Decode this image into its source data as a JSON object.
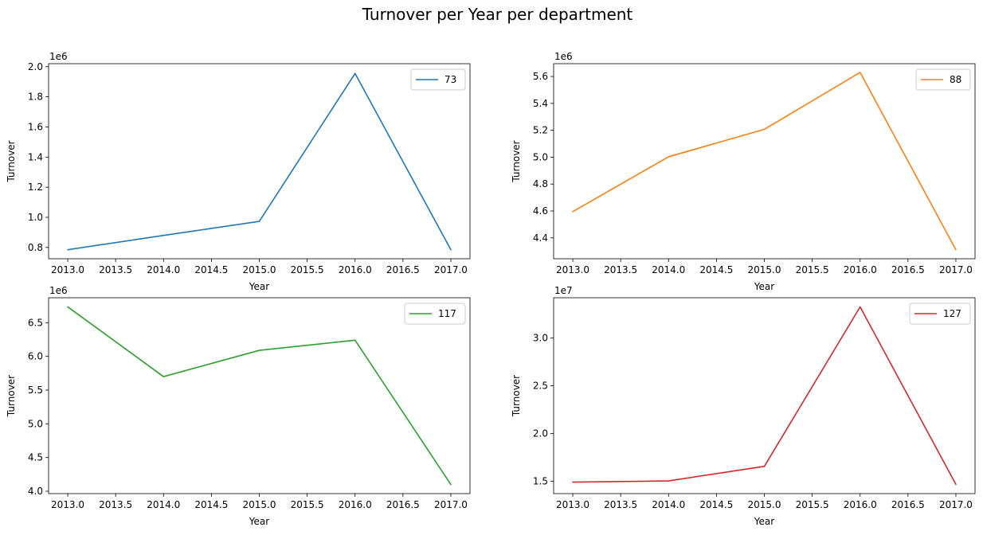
{
  "title": "Turnover per Year per department",
  "chart_data": [
    {
      "type": "line",
      "x": [
        2013.0,
        2014.0,
        2015.0,
        2016.0,
        2017.0
      ],
      "xticks": [
        "2013.0",
        "2013.5",
        "2014.0",
        "2014.5",
        "2015.0",
        "2015.5",
        "2016.0",
        "2016.5",
        "2017.0"
      ],
      "xlabel": "Year",
      "ylabel": "Turnover",
      "offset_text": "1e6",
      "yticks": [
        "0.8",
        "1.0",
        "1.2",
        "1.4",
        "1.6",
        "1.8",
        "2.0"
      ],
      "ylim": [
        725000.0,
        2020000.0
      ],
      "series": [
        {
          "name": "73",
          "color": "#1f77b4",
          "values": [
            785000,
            880000,
            973000,
            1955000,
            785000
          ]
        }
      ],
      "legend": "upper right"
    },
    {
      "type": "line",
      "x": [
        2013.0,
        2014.0,
        2015.0,
        2016.0,
        2017.0
      ],
      "xticks": [
        "2013.0",
        "2013.5",
        "2014.0",
        "2014.5",
        "2015.0",
        "2015.5",
        "2016.0",
        "2016.5",
        "2017.0"
      ],
      "xlabel": "Year",
      "ylabel": "Turnover",
      "offset_text": "1e6",
      "yticks": [
        "4.4",
        "4.6",
        "4.8",
        "5.0",
        "5.2",
        "5.4",
        "5.6"
      ],
      "ylim": [
        4245000.0,
        5695000.0
      ],
      "series": [
        {
          "name": "88",
          "color": "#ff7f0e",
          "values": [
            4595000,
            5003000,
            5207000,
            5630000,
            4312000
          ]
        }
      ],
      "legend": "upper right"
    },
    {
      "type": "line",
      "x": [
        2013.0,
        2014.0,
        2015.0,
        2016.0,
        2017.0
      ],
      "xticks": [
        "2013.0",
        "2013.5",
        "2014.0",
        "2014.5",
        "2015.0",
        "2015.5",
        "2016.0",
        "2016.5",
        "2017.0"
      ],
      "xlabel": "Year",
      "ylabel": "Turnover",
      "offset_text": "1e6",
      "yticks": [
        "4.0",
        "4.5",
        "5.0",
        "5.5",
        "6.0",
        "6.5"
      ],
      "ylim": [
        3965000.0,
        6870000.0
      ],
      "series": [
        {
          "name": "117",
          "color": "#2ca02c",
          "values": [
            6735000,
            5700000,
            6090000,
            6240000,
            4100000
          ]
        }
      ],
      "legend": "upper right"
    },
    {
      "type": "line",
      "x": [
        2013.0,
        2014.0,
        2015.0,
        2016.0,
        2017.0
      ],
      "xticks": [
        "2013.0",
        "2013.5",
        "2014.0",
        "2014.5",
        "2015.0",
        "2015.5",
        "2016.0",
        "2016.5",
        "2017.0"
      ],
      "xlabel": "Year",
      "ylabel": "Turnover",
      "offset_text": "1e7",
      "yticks": [
        "1.5",
        "2.0",
        "2.5",
        "3.0"
      ],
      "ylim": [
        13700000.0,
        34200000.0
      ],
      "series": [
        {
          "name": "127",
          "color": "#d62728",
          "values": [
            14900000,
            15030000,
            16550000,
            33240000,
            14670000
          ]
        }
      ],
      "legend": "upper right"
    }
  ]
}
